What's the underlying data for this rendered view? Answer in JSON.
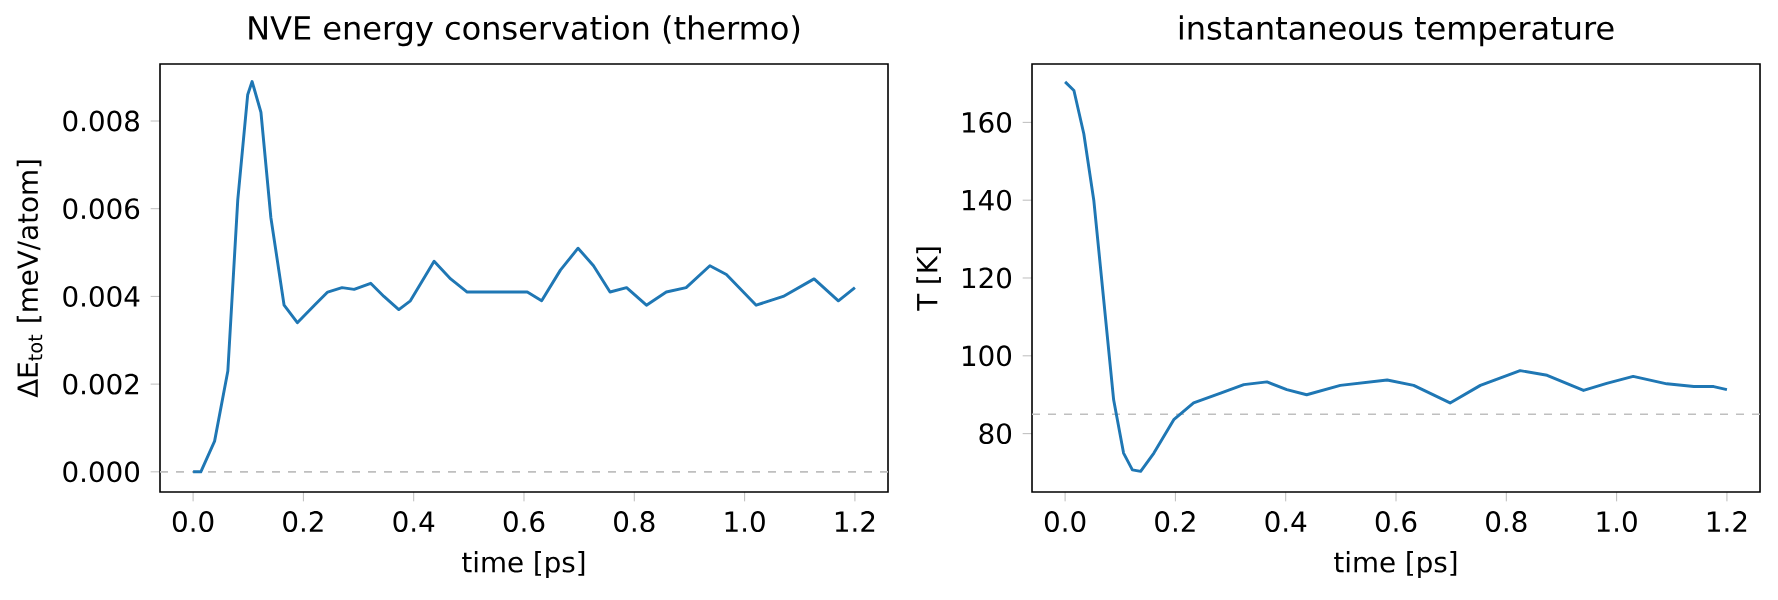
{
  "chart_data": [
    {
      "type": "line",
      "title": "NVE energy conservation (thermo)",
      "xlabel": "time [ps]",
      "ylabel": "ΔE$_{tot}$ [meV/atom]",
      "xlim": [
        -0.06,
        1.26
      ],
      "ylim": [
        -0.00046,
        0.0093
      ],
      "xticks": [
        {
          "value": 0,
          "label": "0.0"
        },
        {
          "value": 0.2,
          "label": "0.2"
        },
        {
          "value": 0.4,
          "label": "0.4"
        },
        {
          "value": 0.6,
          "label": "0.6"
        },
        {
          "value": 0.8,
          "label": "0.8"
        },
        {
          "value": 1.0,
          "label": "1.0"
        },
        {
          "value": 1.2,
          "label": "1.2"
        }
      ],
      "yticks": [
        {
          "value": 0,
          "label": "0.000"
        },
        {
          "value": 0.002,
          "label": "0.002"
        },
        {
          "value": 0.004,
          "label": "0.004"
        },
        {
          "value": 0.006,
          "label": "0.006"
        },
        {
          "value": 0.008,
          "label": "0.008"
        }
      ],
      "marker": "none",
      "line_style": "solid",
      "ref_lines": [
        {
          "axis": "y",
          "value": 0,
          "color": "#bfbfbf",
          "line_style": "dashed"
        }
      ],
      "series": [
        {
          "color": "#1f77b4",
          "x": [
            0,
            0.014,
            0.039,
            0.063,
            0.081,
            0.099,
            0.107,
            0.123,
            0.141,
            0.165,
            0.189,
            0.22,
            0.244,
            0.27,
            0.292,
            0.322,
            0.346,
            0.373,
            0.394,
            0.437,
            0.467,
            0.497,
            0.545,
            0.575,
            0.606,
            0.632,
            0.666,
            0.698,
            0.726,
            0.756,
            0.786,
            0.822,
            0.858,
            0.894,
            0.937,
            0.967,
            1.021,
            1.07,
            1.126,
            1.17,
            1.2
          ],
          "values": [
            0.0,
            0.0,
            0.0007,
            0.0023,
            0.0062,
            0.0086,
            0.0089,
            0.0082,
            0.0058,
            0.0038,
            0.0034,
            0.0038,
            0.0041,
            0.0042,
            0.00416,
            0.0043,
            0.004,
            0.0037,
            0.0039,
            0.0048,
            0.0044,
            0.0041,
            0.0041,
            0.0041,
            0.0041,
            0.0039,
            0.0046,
            0.0051,
            0.0047,
            0.0041,
            0.0042,
            0.0038,
            0.0041,
            0.0042,
            0.0047,
            0.0045,
            0.0038,
            0.004,
            0.0044,
            0.0039,
            0.0042
          ]
        }
      ]
    },
    {
      "type": "line",
      "title": "instantaneous temperature",
      "xlabel": "time [ps]",
      "ylabel": "T [K]",
      "xlim": [
        -0.06,
        1.26
      ],
      "ylim": [
        65,
        175
      ],
      "xticks": [
        {
          "value": 0,
          "label": "0.0"
        },
        {
          "value": 0.2,
          "label": "0.2"
        },
        {
          "value": 0.4,
          "label": "0.4"
        },
        {
          "value": 0.6,
          "label": "0.6"
        },
        {
          "value": 0.8,
          "label": "0.8"
        },
        {
          "value": 1.0,
          "label": "1.0"
        },
        {
          "value": 1.2,
          "label": "1.2"
        }
      ],
      "yticks": [
        80,
        100,
        120,
        140,
        160
      ],
      "marker": "none",
      "line_style": "solid",
      "ref_lines": [
        {
          "axis": "y",
          "value": 85,
          "color": "#bfbfbf",
          "line_style": "dashed"
        }
      ],
      "series": [
        {
          "color": "#1f77b4",
          "x": [
            0,
            0.016,
            0.034,
            0.052,
            0.07,
            0.088,
            0.106,
            0.122,
            0.137,
            0.161,
            0.197,
            0.233,
            0.282,
            0.324,
            0.366,
            0.402,
            0.438,
            0.499,
            0.584,
            0.632,
            0.698,
            0.753,
            0.825,
            0.874,
            0.94,
            0.982,
            1.03,
            1.091,
            1.14,
            1.176,
            1.2
          ],
          "values": [
            170.4,
            168.2,
            157,
            140,
            114.4,
            88.7,
            75,
            70.7,
            70.3,
            75,
            83.6,
            87.9,
            90.4,
            92.6,
            93.3,
            91.3,
            90,
            92.4,
            93.8,
            92.4,
            87.9,
            92.4,
            96.2,
            95,
            91.1,
            92.9,
            94.7,
            92.8,
            92.1,
            92.1,
            91.3
          ]
        }
      ]
    }
  ]
}
